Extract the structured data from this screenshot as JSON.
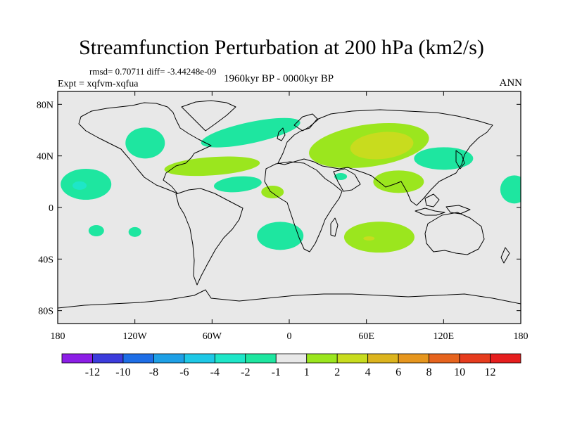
{
  "header": {
    "title": "Streamfunction Perturbation at 200 hPa (km2/s)",
    "stats": "rmsd= 0.70711 diff= -3.44248e-09",
    "experiment": "Expt = xqfvm-xqfua",
    "period": "1960kyr BP - 0000kyr BP",
    "season": "ANN"
  },
  "chart_data": {
    "type": "heatmap",
    "title": "Streamfunction Perturbation at 200 hPa (km2/s)",
    "projection": "cylindrical-equidistant",
    "xlim": [
      -180,
      180
    ],
    "ylim": [
      -90,
      90
    ],
    "x_ticks": [
      {
        "value": -180,
        "label": "180"
      },
      {
        "value": -120,
        "label": "120W"
      },
      {
        "value": -60,
        "label": "60W"
      },
      {
        "value": 0,
        "label": "0"
      },
      {
        "value": 60,
        "label": "60E"
      },
      {
        "value": 120,
        "label": "120E"
      },
      {
        "value": 180,
        "label": "180"
      }
    ],
    "y_ticks": [
      {
        "value": 80,
        "label": "80N"
      },
      {
        "value": 40,
        "label": "40N"
      },
      {
        "value": 0,
        "label": "0"
      },
      {
        "value": -40,
        "label": "40S"
      },
      {
        "value": -80,
        "label": "80S"
      }
    ],
    "background_color": "#e8e8e8",
    "colorbar": {
      "labels": [
        "-12",
        "-10",
        "-8",
        "-6",
        "-4",
        "-2",
        "-1",
        "1",
        "2",
        "4",
        "6",
        "8",
        "10",
        "12"
      ],
      "colors": [
        "#8c1ee6",
        "#3c3cdc",
        "#1e6ee6",
        "#1ea0e6",
        "#1ec8e6",
        "#1ee6c8",
        "#1ee6a0",
        "#e8e8e8",
        "#9be61e",
        "#c8dc1e",
        "#dcb41e",
        "#e6961e",
        "#e6641e",
        "#e63c1e",
        "#e61e1e"
      ]
    },
    "anomaly_regions": [
      {
        "name": "north-atlantic-negative",
        "lon": -30,
        "lat": 58,
        "value": -1.5
      },
      {
        "name": "north-america-negative",
        "lon": -112,
        "lat": 50,
        "value": -1.5
      },
      {
        "name": "north-pacific-east-negative",
        "lon": -158,
        "lat": 18,
        "value": -1.5
      },
      {
        "name": "north-pacific-east-core",
        "lon": -163,
        "lat": 17,
        "value": -2.5
      },
      {
        "name": "tropical-atlantic-negative",
        "lon": -40,
        "lat": 18,
        "value": -1.5
      },
      {
        "name": "east-asia-negative",
        "lon": 120,
        "lat": 38,
        "value": -1.5
      },
      {
        "name": "west-pacific-negative",
        "lon": 175,
        "lat": 14,
        "value": -1.5
      },
      {
        "name": "arabian-sea-negative",
        "lon": 40,
        "lat": 24,
        "value": -1.5
      },
      {
        "name": "south-atlantic-negative",
        "lon": -7,
        "lat": -22,
        "value": -1.5
      },
      {
        "name": "south-pacific-negative-1",
        "lon": -150,
        "lat": -18,
        "value": -1.5
      },
      {
        "name": "south-pacific-negative-2",
        "lon": -120,
        "lat": -19,
        "value": -1.5
      },
      {
        "name": "eurasia-positive",
        "lon": 62,
        "lat": 48,
        "value": 1.5
      },
      {
        "name": "eurasia-positive-core",
        "lon": 72,
        "lat": 48,
        "value": 3.0
      },
      {
        "name": "atlantic-positive",
        "lon": -60,
        "lat": 32,
        "value": 1.5
      },
      {
        "name": "india-positive",
        "lon": 85,
        "lat": 20,
        "value": 1.5
      },
      {
        "name": "west-africa-positive",
        "lon": -13,
        "lat": 12,
        "value": 1.5
      },
      {
        "name": "indian-ocean-positive",
        "lon": 70,
        "lat": -23,
        "value": 1.5
      },
      {
        "name": "indian-ocean-positive-core",
        "lon": 62,
        "lat": -24,
        "value": 2.5
      }
    ]
  }
}
